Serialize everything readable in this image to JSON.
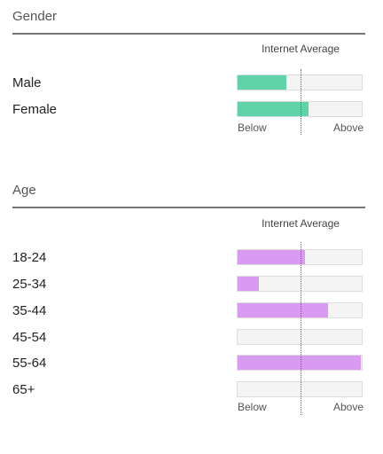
{
  "internet_average_label": "Internet Average",
  "scale": {
    "below": "Below",
    "above": "Above"
  },
  "colors": {
    "gender_fill": "#5fd3a8",
    "age_fill": "#d99af2"
  },
  "gender": {
    "title": "Gender",
    "rows": [
      {
        "label": "Male",
        "value": 0.39
      },
      {
        "label": "Female",
        "value": 0.57
      }
    ]
  },
  "age": {
    "title": "Age",
    "rows": [
      {
        "label": "18-24",
        "value": 0.54
      },
      {
        "label": "25-34",
        "value": 0.17
      },
      {
        "label": "35-44",
        "value": 0.73
      },
      {
        "label": "45-54",
        "value": 0.0
      },
      {
        "label": "55-64",
        "value": 0.99
      },
      {
        "label": "65+",
        "value": 0.0
      }
    ]
  }
}
